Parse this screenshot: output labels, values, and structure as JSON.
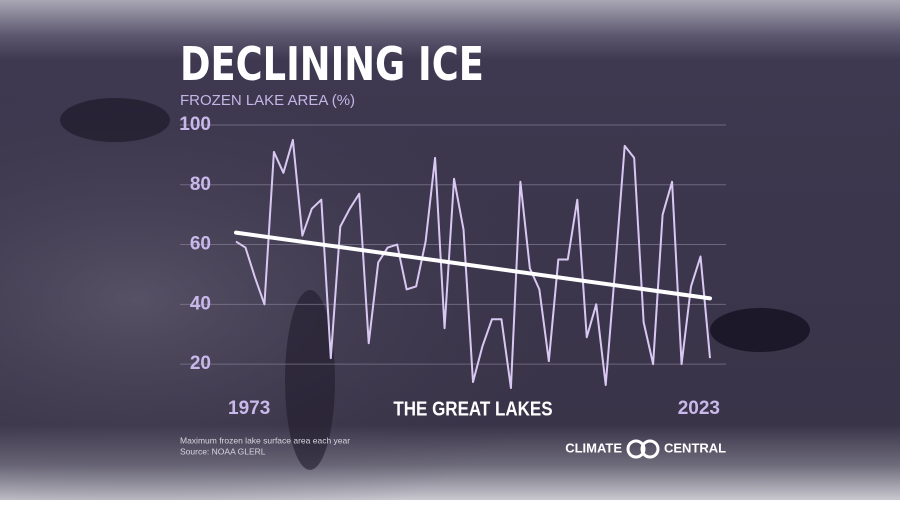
{
  "chart_data": {
    "type": "line",
    "title": "DECLINING ICE",
    "subtitle": "FROZEN LAKE AREA (%)",
    "annotation": "THE GREAT LAKES",
    "footnote": [
      "Maximum frozen lake surface area each year",
      "Source: NOAA GLERL"
    ],
    "brand": [
      "CLIMATE",
      "CENTRAL"
    ],
    "x": [
      1973,
      1974,
      1975,
      1976,
      1977,
      1978,
      1979,
      1980,
      1981,
      1982,
      1983,
      1984,
      1985,
      1986,
      1987,
      1988,
      1989,
      1990,
      1991,
      1992,
      1993,
      1994,
      1995,
      1996,
      1997,
      1998,
      1999,
      2000,
      2001,
      2002,
      2003,
      2004,
      2005,
      2006,
      2007,
      2008,
      2009,
      2010,
      2011,
      2012,
      2013,
      2014,
      2015,
      2016,
      2017,
      2018,
      2019,
      2020,
      2021,
      2022,
      2023
    ],
    "series": [
      {
        "color": "#d9c9f2",
        "values": [
          61,
          59,
          49,
          40,
          91,
          84,
          95,
          63,
          72,
          75,
          22,
          66,
          72,
          77,
          27,
          54,
          59,
          60,
          45,
          46,
          61,
          89,
          32,
          82,
          65,
          14,
          26,
          35,
          35,
          12,
          81,
          52,
          45,
          21,
          55,
          55,
          75,
          29,
          40,
          13,
          52,
          93,
          89,
          34,
          20,
          70,
          81,
          20,
          46,
          56,
          22
        ]
      }
    ],
    "trend": {
      "color": "#ffffff",
      "x": [
        1973,
        2023
      ],
      "values": [
        64,
        42
      ]
    },
    "xlim": [
      1973,
      2023
    ],
    "xticks": [
      1973,
      2023
    ],
    "ylim": [
      10,
      100
    ],
    "yticks": [
      20,
      40,
      60,
      80,
      100
    ],
    "grid": true
  }
}
